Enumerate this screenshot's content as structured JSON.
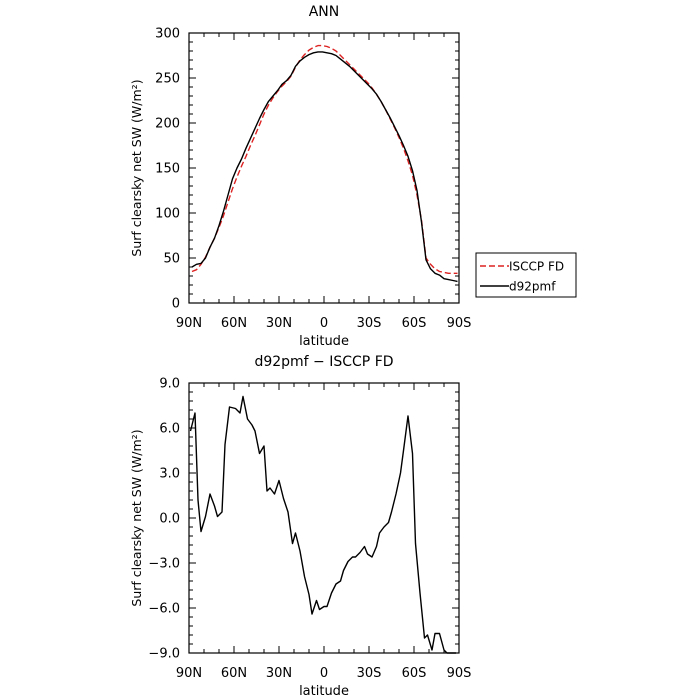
{
  "chart_data": [
    {
      "type": "line",
      "title": "ANN",
      "xlabel": "latitude",
      "ylabel": "Surf clearsky net SW (W/m²)",
      "xlim": [
        90,
        -90
      ],
      "ylim": [
        0,
        300
      ],
      "x_ticks": [
        {
          "value": 90,
          "label": "90N"
        },
        {
          "value": 60,
          "label": "60N"
        },
        {
          "value": 30,
          "label": "30N"
        },
        {
          "value": 0,
          "label": "0"
        },
        {
          "value": -30,
          "label": "30S"
        },
        {
          "value": -60,
          "label": "60S"
        },
        {
          "value": -90,
          "label": "90S"
        }
      ],
      "y_ticks": [
        {
          "value": 300,
          "label": "300"
        },
        {
          "value": 250,
          "label": "250"
        },
        {
          "value": 200,
          "label": "200"
        },
        {
          "value": 150,
          "label": "150"
        },
        {
          "value": 100,
          "label": "100"
        },
        {
          "value": 50,
          "label": "50"
        },
        {
          "value": 0,
          "label": "0"
        }
      ],
      "legend": "right-outside",
      "series": [
        {
          "name": "ISCCP FD",
          "color": "#dd2222",
          "dash": "dashed",
          "x": [
            88,
            85,
            82,
            79,
            76,
            73,
            70,
            67,
            64,
            61,
            58,
            55,
            52,
            49,
            46,
            43,
            40,
            37,
            34,
            31,
            28,
            25,
            22,
            19,
            16,
            13,
            10,
            7,
            4,
            1,
            -2,
            -5,
            -8,
            -11,
            -14,
            -17,
            -20,
            -23,
            -26,
            -29,
            -32,
            -35,
            -38,
            -41,
            -44,
            -47,
            -50,
            -53,
            -56,
            -59,
            -62,
            -65,
            -68,
            -71,
            -74,
            -77,
            -80,
            -83,
            -86,
            -89
          ],
          "y": [
            35,
            37,
            43,
            51,
            62,
            72,
            84,
            97,
            112,
            127,
            140,
            152,
            163,
            175,
            186,
            198,
            210,
            220,
            228,
            235,
            241,
            246,
            252,
            262,
            270,
            276,
            281,
            284,
            286,
            286,
            285,
            283,
            280,
            275,
            270,
            265,
            260,
            255,
            250,
            245,
            239,
            232,
            224,
            215,
            205,
            195,
            184,
            172,
            158,
            142,
            120,
            92,
            50,
            43,
            38,
            35,
            34,
            33,
            33,
            33
          ]
        },
        {
          "name": "d92pmf",
          "color": "#000000",
          "dash": "solid",
          "x": [
            88,
            85,
            82,
            79,
            76,
            73,
            70,
            67,
            64,
            61,
            58,
            55,
            52,
            49,
            46,
            43,
            40,
            37,
            34,
            31,
            28,
            25,
            22,
            19,
            16,
            13,
            10,
            7,
            4,
            1,
            -2,
            -5,
            -8,
            -11,
            -14,
            -17,
            -20,
            -23,
            -26,
            -29,
            -32,
            -35,
            -38,
            -41,
            -44,
            -47,
            -50,
            -53,
            -56,
            -59,
            -62,
            -65,
            -68,
            -71,
            -74,
            -77,
            -80,
            -83,
            -86,
            -89
          ],
          "y": [
            40,
            43,
            44,
            50,
            62,
            72,
            86,
            102,
            120,
            138,
            150,
            160,
            172,
            183,
            194,
            205,
            215,
            224,
            230,
            236,
            243,
            247,
            253,
            263,
            269,
            273,
            276,
            278,
            279,
            279,
            278,
            277,
            275,
            271,
            267,
            263,
            258,
            253,
            248,
            243,
            238,
            232,
            224,
            215,
            206,
            196,
            186,
            175,
            163,
            147,
            125,
            90,
            48,
            38,
            33,
            31,
            27,
            26,
            25,
            24
          ]
        }
      ]
    },
    {
      "type": "line",
      "title": "d92pmf − ISCCP FD",
      "xlabel": "latitude",
      "ylabel": "Surf clearsky net SW (W/m²)",
      "xlim": [
        90,
        -90
      ],
      "ylim": [
        -9,
        9
      ],
      "x_ticks": [
        {
          "value": 90,
          "label": "90N"
        },
        {
          "value": 60,
          "label": "60N"
        },
        {
          "value": 30,
          "label": "30N"
        },
        {
          "value": 0,
          "label": "0"
        },
        {
          "value": -30,
          "label": "30S"
        },
        {
          "value": -60,
          "label": "60S"
        },
        {
          "value": -90,
          "label": "90S"
        }
      ],
      "y_ticks": [
        {
          "value": 9,
          "label": "9.0"
        },
        {
          "value": 6,
          "label": "6.0"
        },
        {
          "value": 3,
          "label": "3.0"
        },
        {
          "value": 0,
          "label": "0.0"
        },
        {
          "value": -3,
          "label": "−3.0"
        },
        {
          "value": -6,
          "label": "−6.0"
        },
        {
          "value": -9,
          "label": "−9.0"
        }
      ],
      "series": [
        {
          "name": "",
          "color": "#000000",
          "dash": "solid",
          "x": [
            89,
            86,
            84,
            82,
            79,
            76,
            73,
            71,
            68,
            66,
            63,
            59,
            56,
            54,
            51,
            48,
            46,
            43,
            40,
            38,
            36,
            33,
            30,
            27,
            24,
            21,
            19,
            16,
            13,
            10,
            8,
            5,
            3,
            0,
            -2,
            -5,
            -8,
            -11,
            -13,
            -16,
            -19,
            -21,
            -24,
            -27,
            -29,
            -32,
            -35,
            -37,
            -40,
            -43,
            -45,
            -48,
            -51,
            -53,
            -56,
            -59,
            -61,
            -64,
            -67,
            -69,
            -72,
            -74,
            -77,
            -80,
            -82,
            -85,
            -88
          ],
          "y": [
            5.8,
            7.0,
            1.2,
            -0.9,
            0.1,
            1.6,
            0.8,
            0.1,
            0.4,
            4.9,
            7.4,
            7.3,
            7.0,
            8.1,
            6.6,
            6.2,
            5.8,
            4.3,
            4.8,
            1.8,
            2.0,
            1.6,
            2.5,
            1.3,
            0.4,
            -1.7,
            -1.0,
            -2.2,
            -3.9,
            -5.1,
            -6.4,
            -5.5,
            -6.1,
            -5.9,
            -5.9,
            -5.0,
            -4.4,
            -4.2,
            -3.5,
            -2.9,
            -2.6,
            -2.6,
            -2.3,
            -1.9,
            -2.4,
            -2.6,
            -1.9,
            -1.0,
            -0.6,
            -0.3,
            0.4,
            1.6,
            3.0,
            4.5,
            6.8,
            4.3,
            -1.7,
            -5.0,
            -8.0,
            -7.8,
            -8.8,
            -7.7,
            -7.7,
            -8.8,
            -9.0,
            -9.0,
            -9.0
          ]
        }
      ]
    }
  ]
}
